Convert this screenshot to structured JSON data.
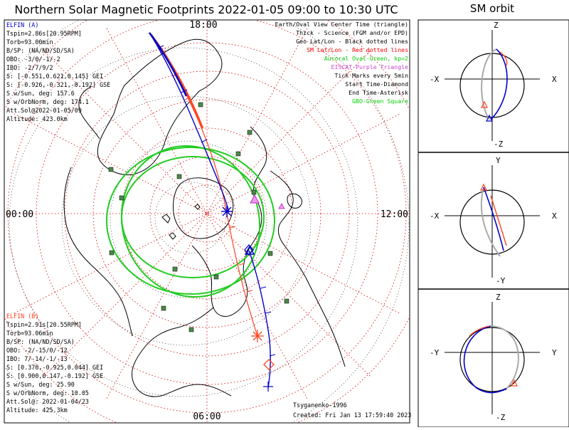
{
  "header": {
    "title": "Northern Solar Magnetic Footprints 2022-01-05 09:00 to 10:30 UTC",
    "orbit_title": "SM orbit"
  },
  "map": {
    "mlt_top": "18:00",
    "mlt_left": "00:00",
    "mlt_right": "12:00",
    "mlt_bottom": "06:00"
  },
  "elfin_a": {
    "title": "ELFIN (A)",
    "lines": [
      "Tspin=2.86s[20.95RPM]",
      "Torb=93.00min",
      "B/SP: (NA/ND/SD/SA)",
      "OBO: -3/0/-1/-2",
      "IBO: -2/7/9/2",
      "S: [-0.551,0.621,0.145] GEI",
      "S: [-0.926,-0.321,-0.192] GSE",
      "S w/Sun, deg: 157.6",
      "S w/OrbNorm, deg: 174.1",
      "Att.Sol@2022-01-05/09",
      "Altitude: 423.0km"
    ]
  },
  "elfin_b": {
    "title": "ELFIN (B)",
    "lines": [
      "Tspin=2.91s[20.55RPM]",
      "Torb=93.06min",
      "B/SP: (NA/ND/SD/SA)",
      "OBO: -2/-15/0/-12",
      "IBO: 7/-14/-1/-13",
      "S: [0.376,-0.925,0.044] GEI",
      "S: [0.900,0.147,-0.192] GSE",
      "S w/Sun, deg: 25.90",
      "S w/OrbNorm, deg: 10.05",
      "Att.Sol@: 2022-01-04/23",
      "Altitude: 425.3km"
    ]
  },
  "legend": {
    "lines": [
      {
        "text": "Earth/Oval View Center Time (triangle)",
        "color": "#000000"
      },
      {
        "text": "Thick - Science (FGM and/or EPD)",
        "color": "#000000"
      },
      {
        "text": "Geo Lat/Lon - Black dotted lines",
        "color": "#000000"
      },
      {
        "text": "SM Lat/Lon - Red dotted lines",
        "color": "#ff0000"
      },
      {
        "text": "Auroral Oval-Green, kp=2",
        "color": "#00d000"
      },
      {
        "text": "EISCAT-Purple Triangle",
        "color": "#cc44cc"
      },
      {
        "text": "Tick Marks every 5min",
        "color": "#000000"
      },
      {
        "text": "Start Time-Diamond",
        "color": "#000000"
      },
      {
        "text": "End Time-Asterisk",
        "color": "#000000"
      },
      {
        "text": "GBO-Green Square",
        "color": "#00d000"
      }
    ]
  },
  "credits": {
    "model": "Tsyganenko-1996",
    "created": "Created: Fri Jan 13 17:59:40 2023"
  },
  "orbit_panels": [
    {
      "top": "Z",
      "bottom": "-Z",
      "left": "-X",
      "right": "X"
    },
    {
      "top": "Y",
      "bottom": "-Y",
      "left": "-X",
      "right": "X"
    },
    {
      "top": "Z",
      "bottom": "-Z",
      "left": "-Y",
      "right": "Y"
    }
  ],
  "colors": {
    "probe_a": "#ff4422",
    "probe_b": "#0000cc",
    "oval": "#22cc22",
    "sm_grid": "#dd0000",
    "eiscat": "#cc44cc",
    "gbo": "#4a8a4a"
  }
}
